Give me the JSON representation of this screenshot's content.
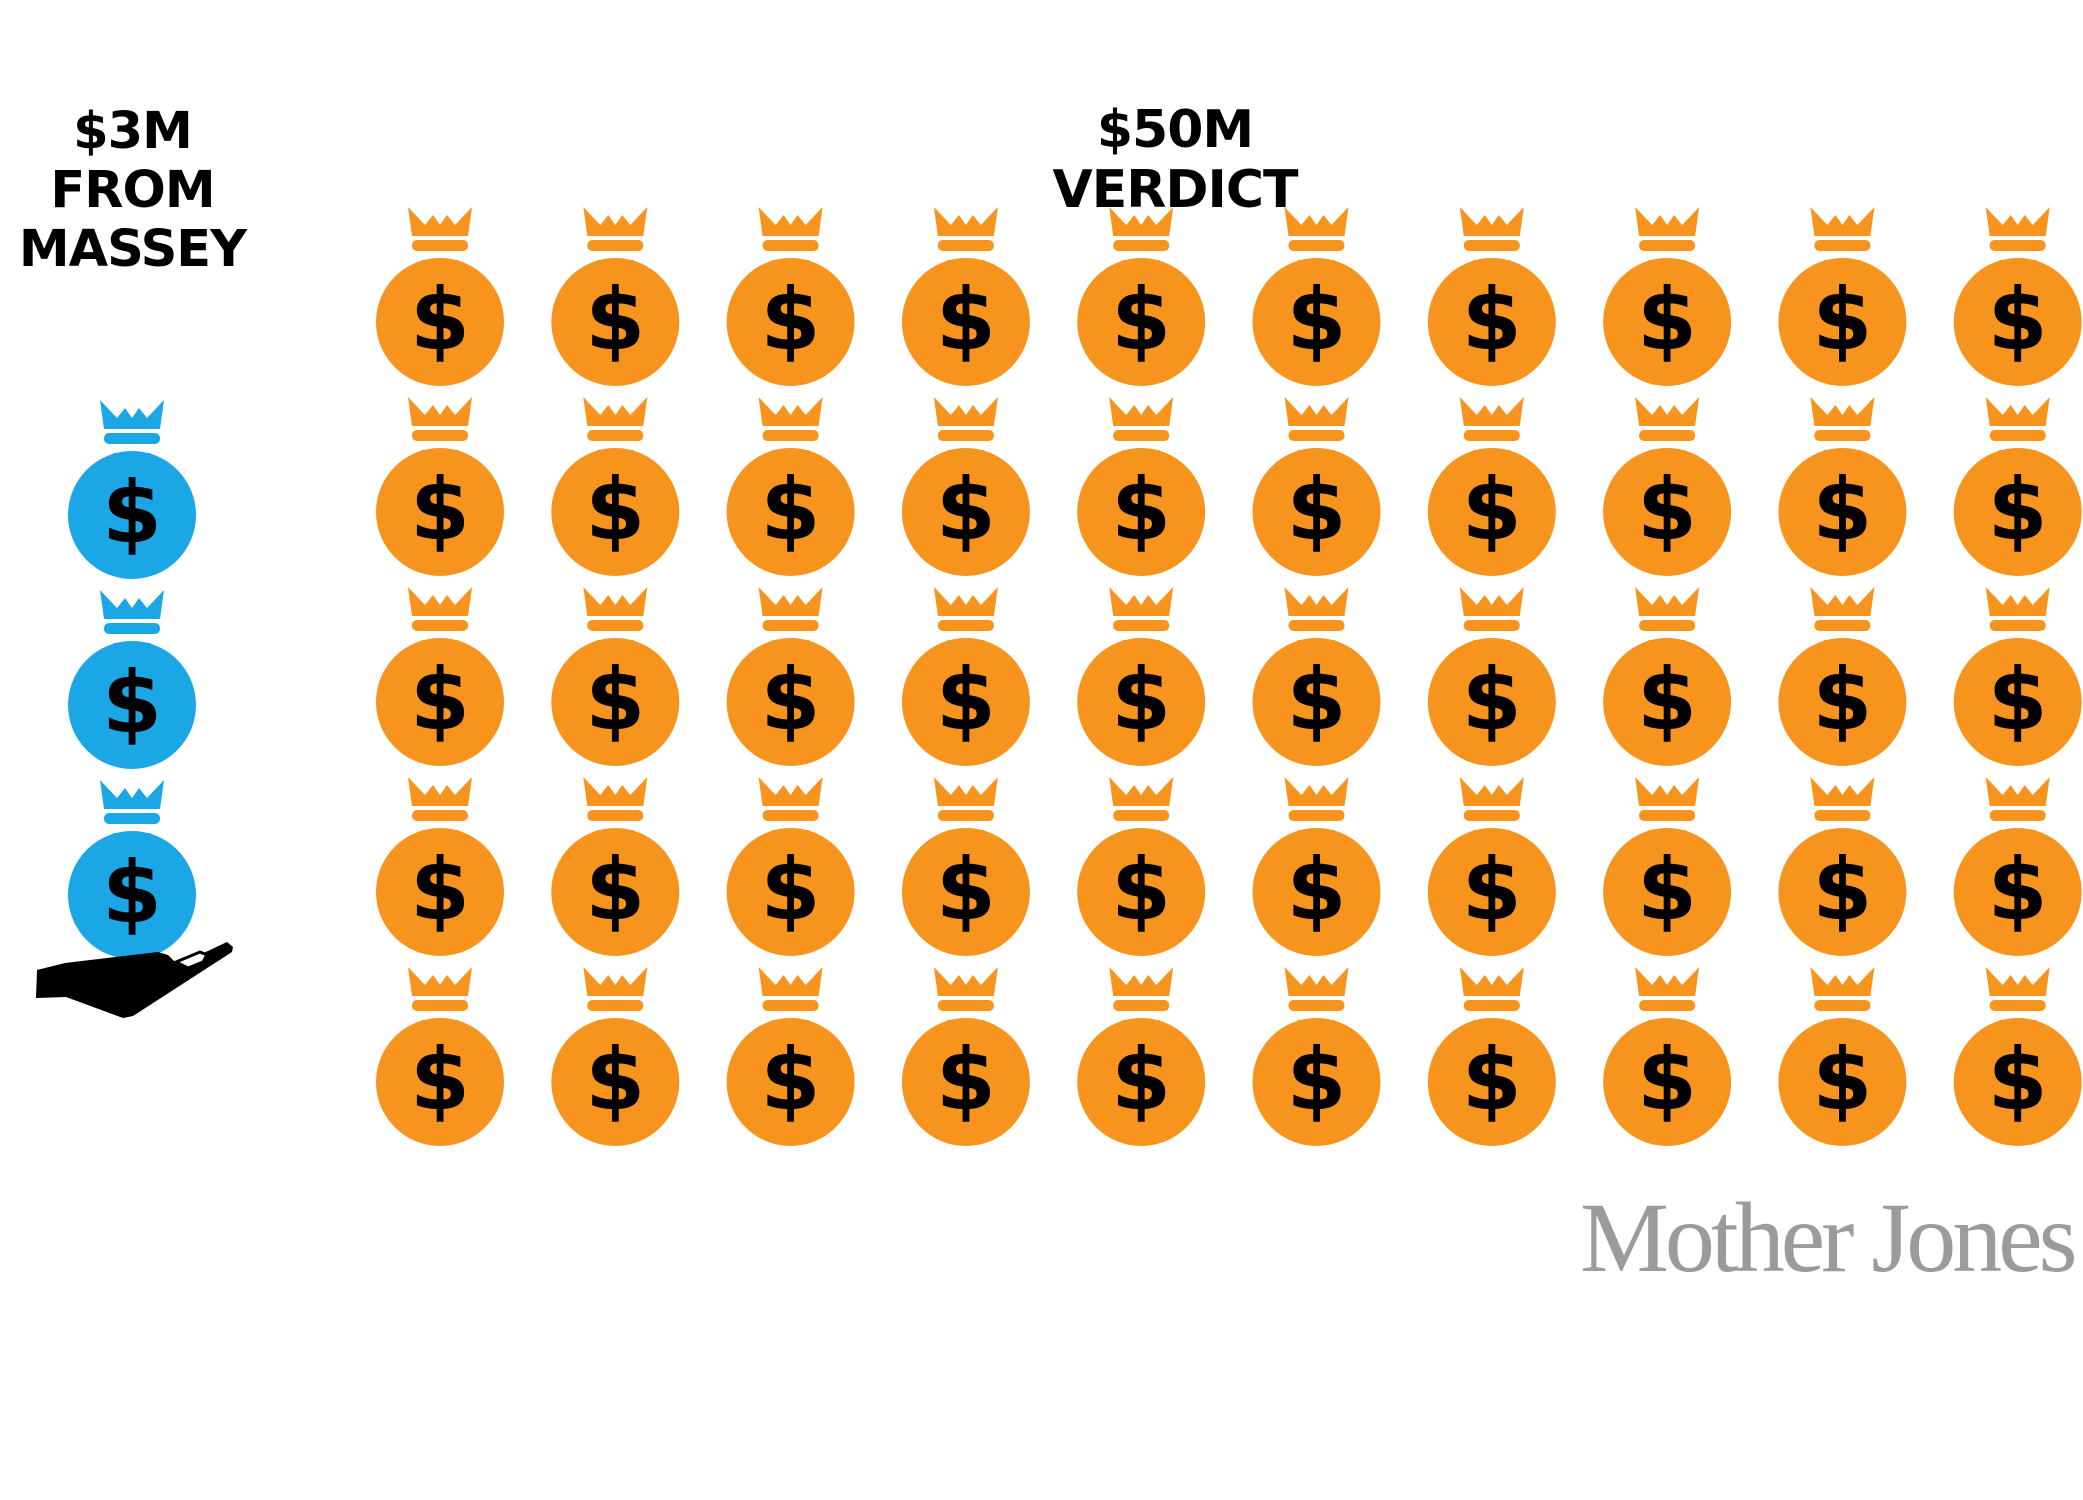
{
  "left_title_lines": [
    "$3M",
    "FROM",
    "MASSEY"
  ],
  "right_title": "$50M VERDICT",
  "logo": "Mother Jones",
  "colors": {
    "orange": "#F7941D",
    "blue": "#1BA7E6",
    "ink": "#000000",
    "logo_gray": "#9B9B9B"
  },
  "icons": {
    "bag": "money-bag-icon",
    "hand": "hand-icon",
    "dollar_glyph": "$"
  },
  "chart_data": {
    "type": "pictogram",
    "unit_value_millions": 1,
    "series": [
      {
        "label": "$3M FROM MASSEY",
        "value_millions": 3,
        "icon_count": 3,
        "color": "#1BA7E6",
        "arrangement": "single vertical stack held by a hand"
      },
      {
        "label": "$50M VERDICT",
        "value_millions": 50,
        "icon_count": 50,
        "color": "#F7941D",
        "arrangement": "grid of 5 rows by 10 columns",
        "rows": 5,
        "columns": 10
      }
    ]
  }
}
